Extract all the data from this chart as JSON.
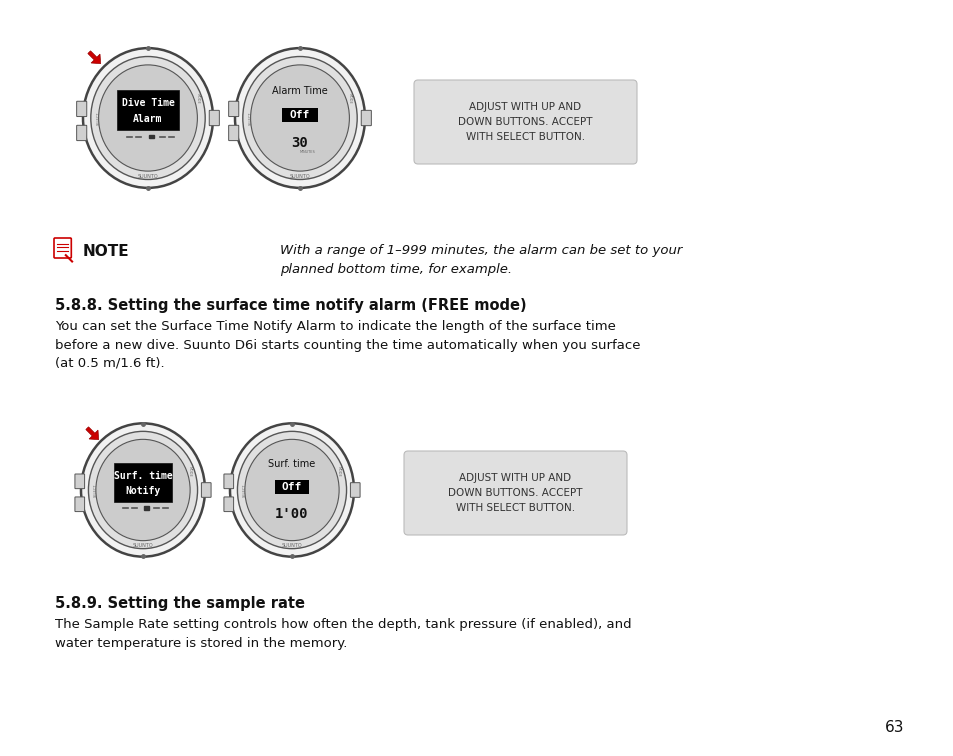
{
  "bg_color": "#ffffff",
  "page_number": "63",
  "section_588_title": "5.8.8. Setting the surface time notify alarm (FREE mode)",
  "section_588_body": "You can set the Surface Time Notify Alarm to indicate the length of the surface time\nbefore a new dive. Suunto D6i starts counting the time automatically when you surface\n(at 0.5 m/1.6 ft).",
  "section_589_title": "5.8.9. Setting the sample rate",
  "section_589_body": "The Sample Rate setting controls how often the depth, tank pressure (if enabled), and\nwater temperature is stored in the memory.",
  "note_text": "With a range of 1–999 minutes, the alarm can be set to your\nplanned bottom time, for example.",
  "callout_text_1": "ADJUST WITH UP AND\nDOWN BUTTONS. ACCEPT\nWITH SELECT BUTTON.",
  "callout_text_2": "ADJUST WITH UP AND\nDOWN BUTTONS. ACCEPT\nWITH SELECT BUTTON.",
  "watch1_lines": [
    "Dive Time",
    "Alarm"
  ],
  "watch2_title": "Alarm Time",
  "watch2_mid": "Off",
  "watch2_bot": "30",
  "watch3_lines": [
    "Surf. time",
    "Notify"
  ],
  "watch4_title": "Surf. time",
  "watch4_mid": "Off",
  "watch4_bot": "1'00",
  "arrow_color": "#cc0000",
  "callout_bg": "#e0e0e0",
  "callout_edge": "#bbbbbb"
}
